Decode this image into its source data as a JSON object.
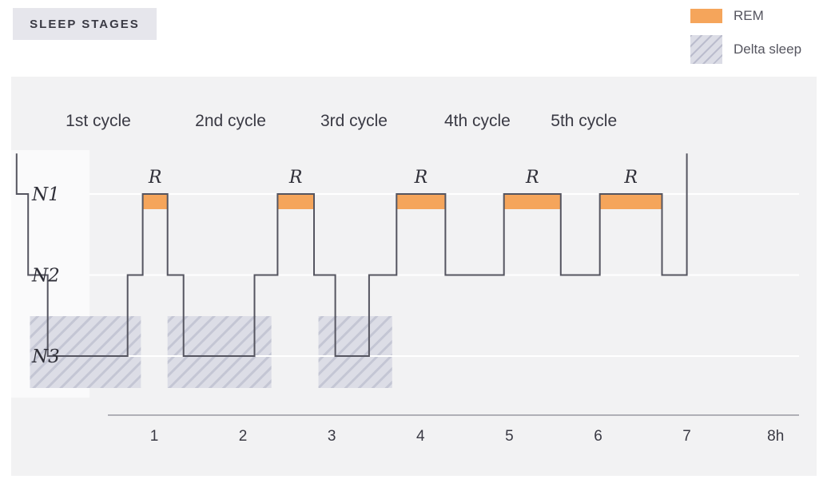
{
  "title": "SLEEP STAGES",
  "legend": {
    "rem": {
      "label": "REM",
      "color": "#f5a55b"
    },
    "delta": {
      "label": "Delta sleep",
      "color": "#dcdde6"
    }
  },
  "chart_data": {
    "type": "line",
    "title": "SLEEP STAGES",
    "xlabel": "",
    "ylabel": "",
    "xlim": [
      0,
      8
    ],
    "y_stages": [
      "N1",
      "N2",
      "N3"
    ],
    "x_ticks": [
      {
        "value": 1,
        "label": "1"
      },
      {
        "value": 2,
        "label": "2"
      },
      {
        "value": 3,
        "label": "3"
      },
      {
        "value": 4,
        "label": "4"
      },
      {
        "value": 5,
        "label": "5"
      },
      {
        "value": 6,
        "label": "6"
      },
      {
        "value": 7,
        "label": "7"
      },
      {
        "value": 8,
        "label": "8h"
      }
    ],
    "cycles": [
      {
        "label": "1st cycle",
        "center": 0.37
      },
      {
        "label": "2nd cycle",
        "center": 1.86
      },
      {
        "label": "3rd cycle",
        "center": 3.25
      },
      {
        "label": "4th cycle",
        "center": 4.64
      },
      {
        "label": "5th cycle",
        "center": 5.84
      }
    ],
    "hypnogram": [
      {
        "x": -0.55,
        "stage": -0.5
      },
      {
        "x": -0.55,
        "stage": 0
      },
      {
        "x": -0.42,
        "stage": 0
      },
      {
        "x": -0.42,
        "stage": 1
      },
      {
        "x": -0.2,
        "stage": 1
      },
      {
        "x": -0.2,
        "stage": 2
      },
      {
        "x": 0.7,
        "stage": 2
      },
      {
        "x": 0.7,
        "stage": 1
      },
      {
        "x": 0.87,
        "stage": 1
      },
      {
        "x": 0.87,
        "stage": 0
      },
      {
        "x": 1.15,
        "stage": 0
      },
      {
        "x": 1.15,
        "stage": 1
      },
      {
        "x": 1.33,
        "stage": 1
      },
      {
        "x": 1.33,
        "stage": 2
      },
      {
        "x": 2.13,
        "stage": 2
      },
      {
        "x": 2.13,
        "stage": 1
      },
      {
        "x": 2.39,
        "stage": 1
      },
      {
        "x": 2.39,
        "stage": 0
      },
      {
        "x": 2.8,
        "stage": 0
      },
      {
        "x": 2.8,
        "stage": 1
      },
      {
        "x": 3.04,
        "stage": 1
      },
      {
        "x": 3.04,
        "stage": 2
      },
      {
        "x": 3.42,
        "stage": 2
      },
      {
        "x": 3.42,
        "stage": 1
      },
      {
        "x": 3.73,
        "stage": 1
      },
      {
        "x": 3.73,
        "stage": 0
      },
      {
        "x": 4.28,
        "stage": 0
      },
      {
        "x": 4.28,
        "stage": 1
      },
      {
        "x": 4.94,
        "stage": 1
      },
      {
        "x": 4.94,
        "stage": 0
      },
      {
        "x": 5.58,
        "stage": 0
      },
      {
        "x": 5.58,
        "stage": 1
      },
      {
        "x": 6.02,
        "stage": 1
      },
      {
        "x": 6.02,
        "stage": 0
      },
      {
        "x": 6.72,
        "stage": 0
      },
      {
        "x": 6.72,
        "stage": 1
      },
      {
        "x": 7.0,
        "stage": 1
      },
      {
        "x": 7.0,
        "stage": -0.5
      }
    ],
    "rem_periods": [
      {
        "start": 0.87,
        "end": 1.15,
        "label": "R"
      },
      {
        "start": 2.39,
        "end": 2.8,
        "label": "R"
      },
      {
        "start": 3.73,
        "end": 4.28,
        "label": "R"
      },
      {
        "start": 4.94,
        "end": 5.58,
        "label": "R"
      },
      {
        "start": 6.02,
        "end": 6.72,
        "label": "R"
      }
    ],
    "delta_periods": [
      {
        "start": -0.4,
        "end": 0.85
      },
      {
        "start": 1.15,
        "end": 2.32
      },
      {
        "start": 2.85,
        "end": 3.68
      }
    ]
  }
}
